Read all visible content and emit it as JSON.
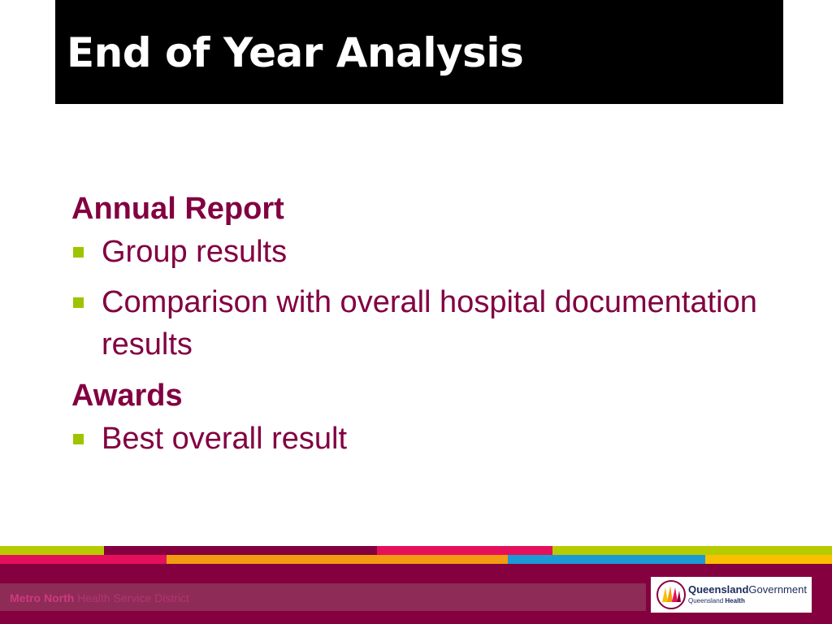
{
  "slide": {
    "title": "End of Year Analysis",
    "sections": [
      {
        "heading": "Annual Report",
        "bullets": [
          "Group results",
          "Comparison with overall hospital documentation results"
        ]
      },
      {
        "heading": "Awards",
        "bullets": [
          "Best overall result"
        ]
      }
    ]
  },
  "footer": {
    "district_bold": "Metro North",
    "district_rest": "Health Service District",
    "logo_line1_bold": "Queensland",
    "logo_line1_rest": "Government",
    "logo_line2_prefix": "Queensland",
    "logo_line2_bold": "Health"
  },
  "colors": {
    "accent": "#820041",
    "bullet": "#9ec400",
    "title_bg": "#000000",
    "footer_bg": "#84003f",
    "stripe_pink": "#e5105b",
    "stripe_orange": "#f39c12",
    "stripe_blue": "#1c9ad6",
    "stripe_yellow": "#f9c000",
    "stripe_green": "#b6cc00"
  },
  "icons": {
    "bullet": "square-bullet-icon",
    "logo": "queensland-crest-icon"
  }
}
